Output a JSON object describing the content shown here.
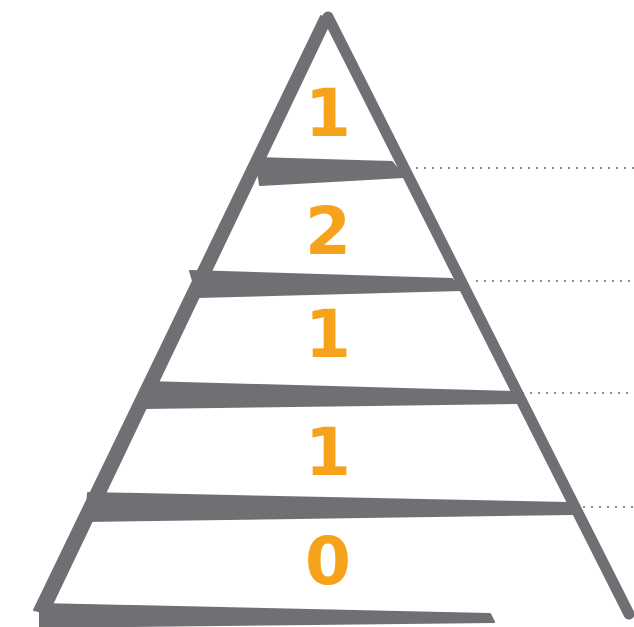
{
  "pyramid": {
    "levels": [
      {
        "value": "1"
      },
      {
        "value": "2"
      },
      {
        "value": "1"
      },
      {
        "value": "1"
      },
      {
        "value": "0"
      }
    ]
  },
  "colors": {
    "outline": "#6f7073",
    "label": "#f7a21b",
    "guide": "#8a8b8e",
    "background": "#ffffff"
  }
}
